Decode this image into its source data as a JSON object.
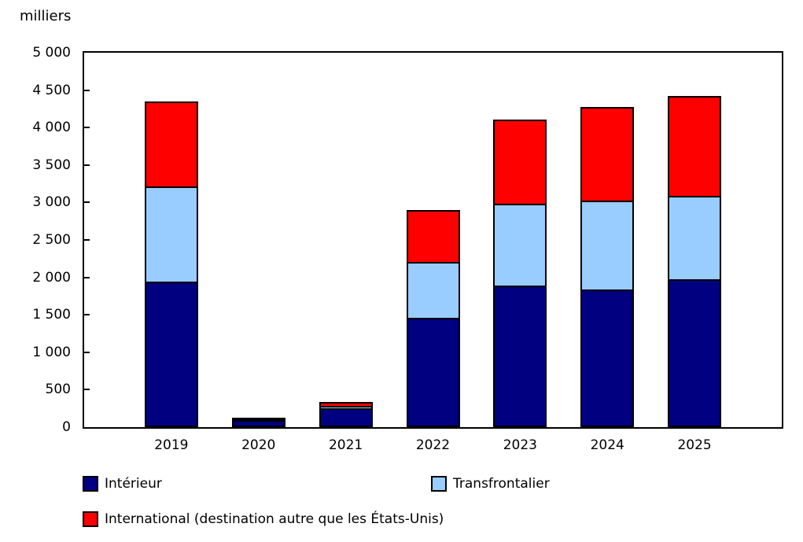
{
  "chart_data": {
    "type": "bar",
    "stacked": true,
    "title": "",
    "ylabel": "milliers",
    "xlabel": "",
    "ylim": [
      0,
      5000
    ],
    "ytick_step": 500,
    "ytick_labels": [
      "0",
      "500",
      "1 000",
      "1 500",
      "2 000",
      "2 500",
      "3 000",
      "3 500",
      "4 000",
      "4 500",
      "5 000"
    ],
    "grid": false,
    "legend_position": "bottom",
    "categories": [
      "2019",
      "2020",
      "2021",
      "2022",
      "2023",
      "2024",
      "2025"
    ],
    "series": [
      {
        "name": "Intérieur",
        "color": "#000080",
        "values": [
          1940,
          105,
          250,
          1465,
          1890,
          1840,
          1970
        ]
      },
      {
        "name": "Transfrontalier",
        "color": "#99CCFF",
        "values": [
          1300,
          10,
          50,
          760,
          1115,
          1210,
          1140
        ]
      },
      {
        "name": "International (destination autre que les États-Unis)",
        "color": "#FF0000",
        "values": [
          1150,
          25,
          75,
          715,
          1145,
          1270,
          1350
        ]
      }
    ],
    "totals": [
      4390,
      140,
      375,
      2940,
      4150,
      4320,
      4460
    ]
  }
}
